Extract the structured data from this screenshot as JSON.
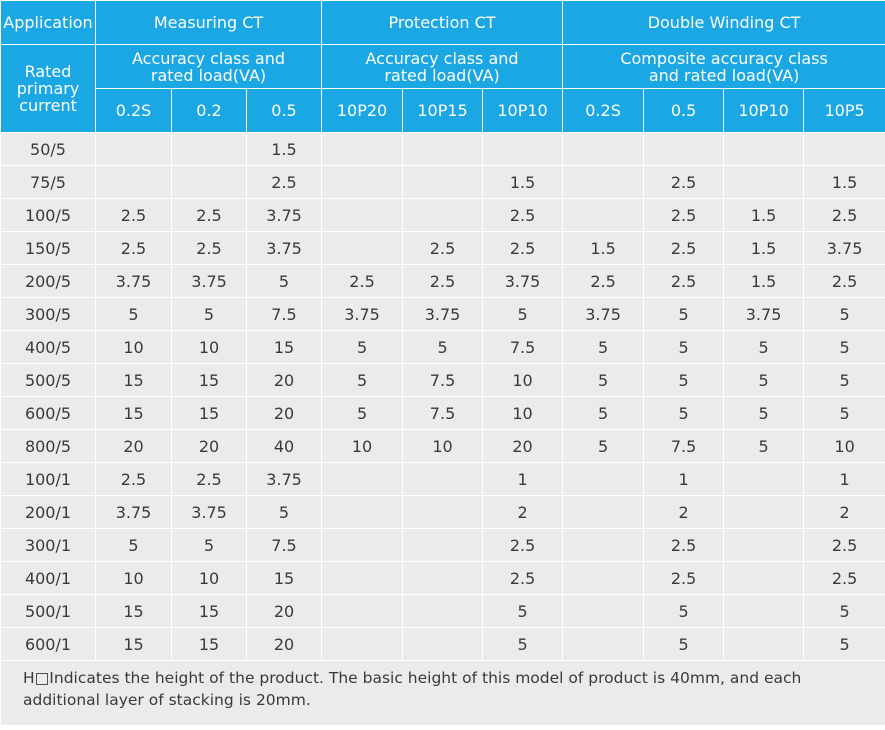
{
  "header": {
    "application": "Application",
    "rated_primary_current": "Rated\nprimary\ncurrent",
    "groups": [
      "Measuring CT",
      "Protection CT",
      "Double Winding CT"
    ],
    "subgroups": [
      "Accuracy class and\nrated load(VA)",
      "Accuracy class and\nrated load(VA)",
      "Composite accuracy class\nand rated load(VA)"
    ],
    "classes": [
      "0.2S",
      "0.2",
      "0.5",
      "10P20",
      "10P15",
      "10P10",
      "0.2S",
      "0.5",
      "10P10",
      "10P5"
    ]
  },
  "rows": [
    {
      "current": "50/5",
      "values": [
        "",
        "",
        "1.5",
        "",
        "",
        "",
        "",
        "",
        "",
        ""
      ]
    },
    {
      "current": "75/5",
      "values": [
        "",
        "",
        "2.5",
        "",
        "",
        "1.5",
        "",
        "2.5",
        "",
        "1.5"
      ]
    },
    {
      "current": "100/5",
      "values": [
        "2.5",
        "2.5",
        "3.75",
        "",
        "",
        "2.5",
        "",
        "2.5",
        "1.5",
        "2.5"
      ]
    },
    {
      "current": "150/5",
      "values": [
        "2.5",
        "2.5",
        "3.75",
        "",
        "2.5",
        "2.5",
        "1.5",
        "2.5",
        "1.5",
        "3.75"
      ]
    },
    {
      "current": "200/5",
      "values": [
        "3.75",
        "3.75",
        "5",
        "2.5",
        "2.5",
        "3.75",
        "2.5",
        "2.5",
        "1.5",
        "2.5"
      ]
    },
    {
      "current": "300/5",
      "values": [
        "5",
        "5",
        "7.5",
        "3.75",
        "3.75",
        "5",
        "3.75",
        "5",
        "3.75",
        "5"
      ]
    },
    {
      "current": "400/5",
      "values": [
        "10",
        "10",
        "15",
        "5",
        "5",
        "7.5",
        "5",
        "5",
        "5",
        "5"
      ]
    },
    {
      "current": "500/5",
      "values": [
        "15",
        "15",
        "20",
        "5",
        "7.5",
        "10",
        "5",
        "5",
        "5",
        "5"
      ]
    },
    {
      "current": "600/5",
      "values": [
        "15",
        "15",
        "20",
        "5",
        "7.5",
        "10",
        "5",
        "5",
        "5",
        "5"
      ]
    },
    {
      "current": "800/5",
      "values": [
        "20",
        "20",
        "40",
        "10",
        "10",
        "20",
        "5",
        "7.5",
        "5",
        "10"
      ]
    },
    {
      "current": "100/1",
      "values": [
        "2.5",
        "2.5",
        "3.75",
        "",
        "",
        "1",
        "",
        "1",
        "",
        "1"
      ]
    },
    {
      "current": "200/1",
      "values": [
        "3.75",
        "3.75",
        "5",
        "",
        "",
        "2",
        "",
        "2",
        "",
        "2"
      ]
    },
    {
      "current": "300/1",
      "values": [
        "5",
        "5",
        "7.5",
        "",
        "",
        "2.5",
        "",
        "2.5",
        "",
        "2.5"
      ]
    },
    {
      "current": "400/1",
      "values": [
        "10",
        "10",
        "15",
        "",
        "",
        "2.5",
        "",
        "2.5",
        "",
        "2.5"
      ]
    },
    {
      "current": "500/1",
      "values": [
        "15",
        "15",
        "20",
        "",
        "",
        "5",
        "",
        "5",
        "",
        "5"
      ]
    },
    {
      "current": "600/1",
      "values": [
        "15",
        "15",
        "20",
        "",
        "",
        "5",
        "",
        "5",
        "",
        "5"
      ]
    }
  ],
  "note": "H□Indicates the height of the product. The basic height of this model of product is 40mm, and each additional layer of stacking is 20mm.",
  "colors": {
    "header_bg": "#1aa7e3",
    "cell_bg": "#ebebeb",
    "text": "#3a3a3a"
  }
}
